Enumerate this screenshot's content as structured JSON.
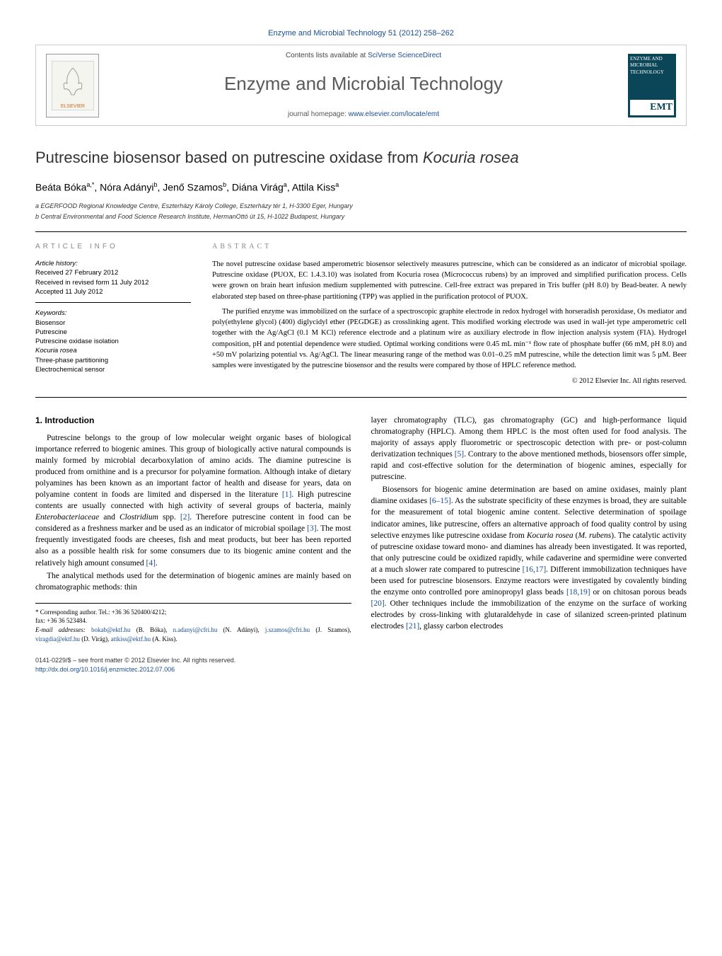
{
  "header_link": "Enzyme and Microbial Technology 51 (2012) 258–262",
  "journal_header": {
    "contents_prefix": "Contents lists available at ",
    "contents_link": "SciVerse ScienceDirect",
    "journal_title": "Enzyme and Microbial Technology",
    "homepage_prefix": "journal homepage: ",
    "homepage_link": "www.elsevier.com/locate/emt",
    "elsevier_label": "ELSEVIER",
    "cover_text_top": "ENZYME AND MICROBIAL TECHNOLOGY",
    "cover_emt": "EMT"
  },
  "title_plain": "Putrescine biosensor based on putrescine oxidase from ",
  "title_italic": "Kocuria rosea",
  "authors_html": "Beáta Bóka<sup>a,*</sup>, Nóra Adányi<sup>b</sup>, Jenő Szamos<sup>b</sup>, Diána Virág<sup>a</sup>, Attila Kiss<sup>a</sup>",
  "affiliations": {
    "a": "a EGERFOOD Regional Knowledge Centre, Eszterházy Károly College, Eszterházy tér 1, H-3300 Eger, Hungary",
    "b": "b Central Environmental and Food Science Research Institute, HermanOttó út 15, H-1022 Budapest, Hungary"
  },
  "info": {
    "heading": "article info",
    "history_label": "Article history:",
    "received": "Received 27 February 2012",
    "revised": "Received in revised form 11 July 2012",
    "accepted": "Accepted 11 July 2012",
    "keywords_label": "Keywords:",
    "keywords": [
      "Biosensor",
      "Putrescine",
      "Putrescine oxidase isolation",
      "Kocuria rosea",
      "Three-phase partitioning",
      "Electrochemical sensor"
    ]
  },
  "abstract": {
    "heading": "abstract",
    "p1": "The novel putrescine oxidase based amperometric biosensor selectively measures putrescine, which can be considered as an indicator of microbial spoilage. Putrescine oxidase (PUOX, EC 1.4.3.10) was isolated from Kocuria rosea (Micrococcus rubens) by an improved and simplified purification process. Cells were grown on brain heart infusion medium supplemented with putrescine. Cell-free extract was prepared in Tris buffer (pH 8.0) by Bead-beater. A newly elaborated step based on three-phase partitioning (TPP) was applied in the purification protocol of PUOX.",
    "p2": "The purified enzyme was immobilized on the surface of a spectroscopic graphite electrode in redox hydrogel with horseradish peroxidase, Os mediator and poly(ethylene glycol) (400) diglycidyl ether (PEGDGE) as crosslinking agent. This modified working electrode was used in wall-jet type amperometric cell together with the Ag/AgCl (0.1 M KCl) reference electrode and a platinum wire as auxiliary electrode in flow injection analysis system (FIA). Hydrogel composition, pH and potential dependence were studied. Optimal working conditions were 0.45 mL min⁻¹ flow rate of phosphate buffer (66 mM, pH 8.0) and +50 mV polarizing potential vs. Ag/AgCl. The linear measuring range of the method was 0.01–0.25 mM putrescine, while the detection limit was 5 µM. Beer samples were investigated by the putrescine biosensor and the results were compared by those of HPLC reference method.",
    "copyright": "© 2012 Elsevier Inc. All rights reserved."
  },
  "body": {
    "section1_heading": "1. Introduction",
    "p1a": "Putrescine belongs to the group of low molecular weight organic bases of biological importance referred to biogenic amines. This group of biologically active natural compounds is mainly formed by microbial decarboxylation of amino acids. The diamine putrescine is produced from ornithine and is a precursor for polyamine formation. Although intake of dietary polyamines has been known as an important factor of health and disease for years, data on polyamine content in foods are limited and dispersed in the literature ",
    "ref1": "[1]",
    "p1b": ". High putrescine contents are usually connected with high activity of several groups of bacteria, mainly ",
    "em1": "Enterobacteriaceae",
    "p1c": " and ",
    "em2": "Clostridium",
    "p1d": " spp. ",
    "ref2": "[2]",
    "p1e": ". Therefore putrescine content in food can be considered as a freshness marker and be used as an indicator of microbial spoilage ",
    "ref3": "[3]",
    "p1f": ". The most frequently investigated foods are cheeses, fish and meat products, but beer has been reported also as a possible health risk for some consumers due to its biogenic amine content and the relatively high amount consumed ",
    "ref4": "[4]",
    "p1g": ".",
    "p2": "The analytical methods used for the determination of biogenic amines are mainly based on chromatographic methods: thin",
    "p3a": "layer chromatography (TLC), gas chromatography (GC) and high-performance liquid chromatography (HPLC). Among them HPLC is the most often used for food analysis. The majority of assays apply fluorometric or spectroscopic detection with pre- or post-column derivatization techniques ",
    "ref5": "[5]",
    "p3b": ". Contrary to the above mentioned methods, biosensors offer simple, rapid and cost-effective solution for the determination of biogenic amines, especially for putrescine.",
    "p4a": "Biosensors for biogenic amine determination are based on amine oxidases, mainly plant diamine oxidases ",
    "ref6": "[6–15]",
    "p4b": ". As the substrate specificity of these enzymes is broad, they are suitable for the measurement of total biogenic amine content. Selective determination of spoilage indicator amines, like putrescine, offers an alternative approach of food quality control by using selective enzymes like putrescine oxidase from ",
    "em3": "Kocuria rosea",
    "p4c": " (",
    "em4": "M. rubens",
    "p4d": "). The catalytic activity of putrescine oxidase toward mono- and diamines has already been investigated. It was reported, that only putrescine could be oxidized rapidly, while cadaverine and spermidine were converted at a much slower rate compared to putrescine ",
    "ref7": "[16,17]",
    "p4e": ". Different immobilization techniques have been used for putrescine biosensors. Enzyme reactors were investigated by covalently binding the enzyme onto controlled pore aminopropyl glass beads ",
    "ref8": "[18,19]",
    "p4f": " or on chitosan porous beads ",
    "ref9": "[20]",
    "p4g": ". Other techniques include the immobilization of the enzyme on the surface of working electrodes by cross-linking with glutaraldehyde in case of silanized screen-printed platinum electrodes ",
    "ref10": "[21]",
    "p4h": ", glassy carbon electrodes"
  },
  "footnotes": {
    "corr": "* Corresponding author. Tel.: +36 36 520400/4212;",
    "fax": "fax: +36 36 523484.",
    "emails_label": "E-mail addresses: ",
    "e1": "bokab@ektf.hu",
    "n1": " (B. Bóka), ",
    "e2": "n.adanyi@cfri.hu",
    "n2": " (N. Adányi), ",
    "e3": "j.szamos@cfri.hu",
    "n3": " (J. Szamos), ",
    "e4": "viragdia@ektf.hu",
    "n4": " (D. Virág), ",
    "e5": "attkiss@ektf.hu",
    "n5": " (A. Kiss)."
  },
  "bottom": {
    "line1": "0141-0229/$ – see front matter © 2012 Elsevier Inc. All rights reserved.",
    "doi": "http://dx.doi.org/10.1016/j.enzmictec.2012.07.006"
  },
  "colors": {
    "link": "#1a4d8f",
    "text": "#000000",
    "heading_gray": "#888888",
    "cover_bg": "#0a4558"
  }
}
